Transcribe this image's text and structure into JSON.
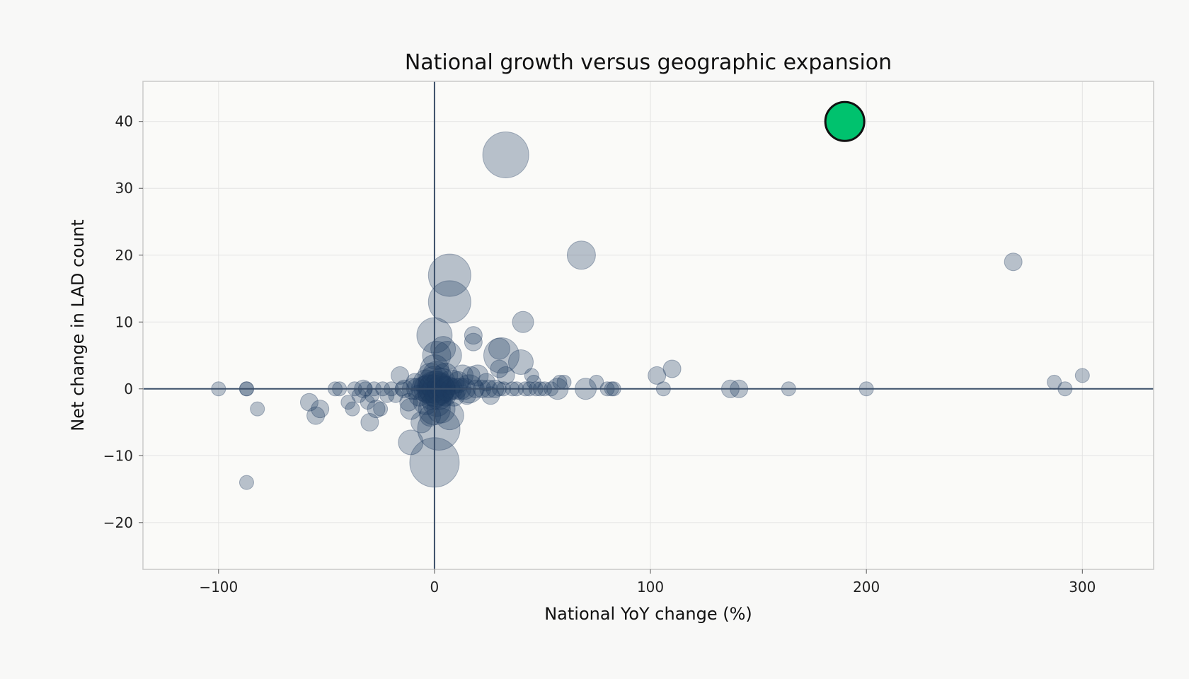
{
  "chart_data": {
    "type": "scatter",
    "title": "National growth versus geographic expansion",
    "xlabel": "National YoY change (%)",
    "ylabel": "Net change in LAD count",
    "xlim": [
      -135,
      333
    ],
    "ylim": [
      -27,
      46
    ],
    "xticks": [
      -100,
      0,
      100,
      200,
      300
    ],
    "yticks": [
      -20,
      -10,
      0,
      10,
      20,
      30,
      40
    ],
    "xtick_labels": [
      "−100",
      "0",
      "100",
      "200",
      "300"
    ],
    "ytick_labels": [
      "−20",
      "−10",
      "0",
      "10",
      "20",
      "30",
      "40"
    ],
    "grid": true,
    "reference_lines": {
      "x": 0,
      "y": 0
    },
    "colors": {
      "points": "#1f3a5f",
      "highlight": "#00c26e",
      "highlight_edge": "#111111",
      "ref_line": "#3b4f69",
      "grid": "#e3e3e3",
      "plot_bg": "#fafaf8",
      "frame": "#c9c9c9"
    },
    "points": [
      {
        "x": -100,
        "y": 0,
        "s": 2
      },
      {
        "x": -87,
        "y": 0,
        "s": 2
      },
      {
        "x": -87,
        "y": 0,
        "s": 2
      },
      {
        "x": -82,
        "y": -3,
        "s": 2
      },
      {
        "x": -87,
        "y": -14,
        "s": 2
      },
      {
        "x": -58,
        "y": -2,
        "s": 2.5
      },
      {
        "x": -55,
        "y": -4,
        "s": 2.5
      },
      {
        "x": -53,
        "y": -3,
        "s": 2.5
      },
      {
        "x": -46,
        "y": 0,
        "s": 2
      },
      {
        "x": -44,
        "y": 0,
        "s": 2
      },
      {
        "x": -40,
        "y": -2,
        "s": 2
      },
      {
        "x": -38,
        "y": -3,
        "s": 2
      },
      {
        "x": -37,
        "y": 0,
        "s": 2
      },
      {
        "x": -35,
        "y": -1,
        "s": 2
      },
      {
        "x": -33,
        "y": 0,
        "s": 2.5
      },
      {
        "x": -32,
        "y": 0,
        "s": 2
      },
      {
        "x": -31,
        "y": -2,
        "s": 2
      },
      {
        "x": -30,
        "y": -5,
        "s": 2.5
      },
      {
        "x": -29,
        "y": -1,
        "s": 2
      },
      {
        "x": -28,
        "y": 0,
        "s": 2
      },
      {
        "x": -27,
        "y": -3,
        "s": 2.5
      },
      {
        "x": -25,
        "y": -3,
        "s": 2
      },
      {
        "x": -24,
        "y": 0,
        "s": 2
      },
      {
        "x": -22,
        "y": -1,
        "s": 2
      },
      {
        "x": -20,
        "y": 0,
        "s": 2
      },
      {
        "x": -18,
        "y": -1,
        "s": 2
      },
      {
        "x": -16,
        "y": 2,
        "s": 2.5
      },
      {
        "x": -15,
        "y": 0,
        "s": 2
      },
      {
        "x": -14,
        "y": 0,
        "s": 2.5
      },
      {
        "x": -12,
        "y": -2,
        "s": 2.5
      },
      {
        "x": -11,
        "y": -3,
        "s": 3
      },
      {
        "x": -11,
        "y": -8,
        "s": 3.5
      },
      {
        "x": -10,
        "y": 0,
        "s": 3
      },
      {
        "x": -9,
        "y": 1,
        "s": 2.5
      },
      {
        "x": -8,
        "y": 0,
        "s": 3
      },
      {
        "x": -7,
        "y": -1,
        "s": 3
      },
      {
        "x": -6,
        "y": -5,
        "s": 3
      },
      {
        "x": -5,
        "y": 0,
        "s": 3.5
      },
      {
        "x": -4,
        "y": 1,
        "s": 3.5
      },
      {
        "x": -4,
        "y": -2,
        "s": 3.5
      },
      {
        "x": -3,
        "y": 0,
        "s": 4
      },
      {
        "x": -2,
        "y": -4,
        "s": 3
      },
      {
        "x": -2,
        "y": 2,
        "s": 3.5
      },
      {
        "x": -1,
        "y": 0,
        "s": 4
      },
      {
        "x": -1,
        "y": -1,
        "s": 4
      },
      {
        "x": 0,
        "y": 0,
        "s": 5
      },
      {
        "x": 0,
        "y": 8,
        "s": 5
      },
      {
        "x": 0,
        "y": -11,
        "s": 7
      },
      {
        "x": 0,
        "y": 3,
        "s": 4
      },
      {
        "x": 0,
        "y": -3,
        "s": 4.5
      },
      {
        "x": 0,
        "y": 1,
        "s": 4.5
      },
      {
        "x": 1,
        "y": 0,
        "s": 5
      },
      {
        "x": 1,
        "y": -2,
        "s": 4
      },
      {
        "x": 1,
        "y": 2,
        "s": 4
      },
      {
        "x": 1,
        "y": 5,
        "s": 4
      },
      {
        "x": 2,
        "y": 0,
        "s": 4.5
      },
      {
        "x": 2,
        "y": -1,
        "s": 4
      },
      {
        "x": 2,
        "y": -6,
        "s": 6
      },
      {
        "x": 3,
        "y": 1,
        "s": 4
      },
      {
        "x": 3,
        "y": 0,
        "s": 4
      },
      {
        "x": 3,
        "y": -3,
        "s": 4
      },
      {
        "x": 4,
        "y": 6,
        "s": 3.5
      },
      {
        "x": 4,
        "y": 0,
        "s": 3.5
      },
      {
        "x": 5,
        "y": 2,
        "s": 3.5
      },
      {
        "x": 5,
        "y": -1,
        "s": 3
      },
      {
        "x": 6,
        "y": 5,
        "s": 4
      },
      {
        "x": 6,
        "y": 0,
        "s": 3.5
      },
      {
        "x": 7,
        "y": 17,
        "s": 6
      },
      {
        "x": 7,
        "y": 13,
        "s": 6
      },
      {
        "x": 7,
        "y": -4,
        "s": 4
      },
      {
        "x": 8,
        "y": 1,
        "s": 3.5
      },
      {
        "x": 8,
        "y": 0,
        "s": 3
      },
      {
        "x": 9,
        "y": -1,
        "s": 3
      },
      {
        "x": 10,
        "y": 0,
        "s": 3
      },
      {
        "x": 11,
        "y": 1,
        "s": 3
      },
      {
        "x": 12,
        "y": 0,
        "s": 3
      },
      {
        "x": 13,
        "y": 2,
        "s": 3
      },
      {
        "x": 14,
        "y": 0,
        "s": 3
      },
      {
        "x": 15,
        "y": -1,
        "s": 2.5
      },
      {
        "x": 16,
        "y": 0,
        "s": 4
      },
      {
        "x": 17,
        "y": 2,
        "s": 2.5
      },
      {
        "x": 18,
        "y": 8,
        "s": 2.5
      },
      {
        "x": 18,
        "y": 7,
        "s": 2.5
      },
      {
        "x": 19,
        "y": 0,
        "s": 2.5
      },
      {
        "x": 20,
        "y": 2,
        "s": 3
      },
      {
        "x": 22,
        "y": 0,
        "s": 2.5
      },
      {
        "x": 24,
        "y": 1,
        "s": 2.5
      },
      {
        "x": 25,
        "y": 0,
        "s": 2.5
      },
      {
        "x": 26,
        "y": -1,
        "s": 2.5
      },
      {
        "x": 28,
        "y": 0,
        "s": 2.5
      },
      {
        "x": 30,
        "y": 0,
        "s": 2
      },
      {
        "x": 30,
        "y": 6,
        "s": 3
      },
      {
        "x": 30,
        "y": 3,
        "s": 2.5
      },
      {
        "x": 31,
        "y": 5,
        "s": 5
      },
      {
        "x": 32,
        "y": 0,
        "s": 2
      },
      {
        "x": 33,
        "y": 2,
        "s": 2.5
      },
      {
        "x": 33,
        "y": 35,
        "s": 6.5
      },
      {
        "x": 36,
        "y": 0,
        "s": 2
      },
      {
        "x": 38,
        "y": 0,
        "s": 2
      },
      {
        "x": 40,
        "y": 4,
        "s": 3.5
      },
      {
        "x": 41,
        "y": 10,
        "s": 3
      },
      {
        "x": 42,
        "y": 0,
        "s": 2
      },
      {
        "x": 44,
        "y": 0,
        "s": 2
      },
      {
        "x": 45,
        "y": 2,
        "s": 2
      },
      {
        "x": 46,
        "y": 1,
        "s": 2
      },
      {
        "x": 47,
        "y": 0,
        "s": 2
      },
      {
        "x": 49,
        "y": 0,
        "s": 2
      },
      {
        "x": 51,
        "y": 0,
        "s": 2
      },
      {
        "x": 54,
        "y": 0,
        "s": 2
      },
      {
        "x": 57,
        "y": 0,
        "s": 3
      },
      {
        "x": 58,
        "y": 1,
        "s": 2
      },
      {
        "x": 60,
        "y": 1,
        "s": 2
      },
      {
        "x": 68,
        "y": 20,
        "s": 4
      },
      {
        "x": 70,
        "y": 0,
        "s": 3
      },
      {
        "x": 75,
        "y": 1,
        "s": 2
      },
      {
        "x": 80,
        "y": 0,
        "s": 2
      },
      {
        "x": 82,
        "y": 0,
        "s": 2
      },
      {
        "x": 83,
        "y": 0,
        "s": 2
      },
      {
        "x": 103,
        "y": 2,
        "s": 2.5
      },
      {
        "x": 106,
        "y": 0,
        "s": 2
      },
      {
        "x": 110,
        "y": 3,
        "s": 2.5
      },
      {
        "x": 137,
        "y": 0,
        "s": 2.5
      },
      {
        "x": 141,
        "y": 0,
        "s": 2.5
      },
      {
        "x": 164,
        "y": 0,
        "s": 2
      },
      {
        "x": 200,
        "y": 0,
        "s": 2
      },
      {
        "x": 268,
        "y": 19,
        "s": 2.5
      },
      {
        "x": 287,
        "y": 1,
        "s": 2
      },
      {
        "x": 292,
        "y": 0,
        "s": 2
      },
      {
        "x": 300,
        "y": 2,
        "s": 2
      }
    ],
    "highlight": {
      "x": 190,
      "y": 40,
      "s": 5.5
    }
  }
}
